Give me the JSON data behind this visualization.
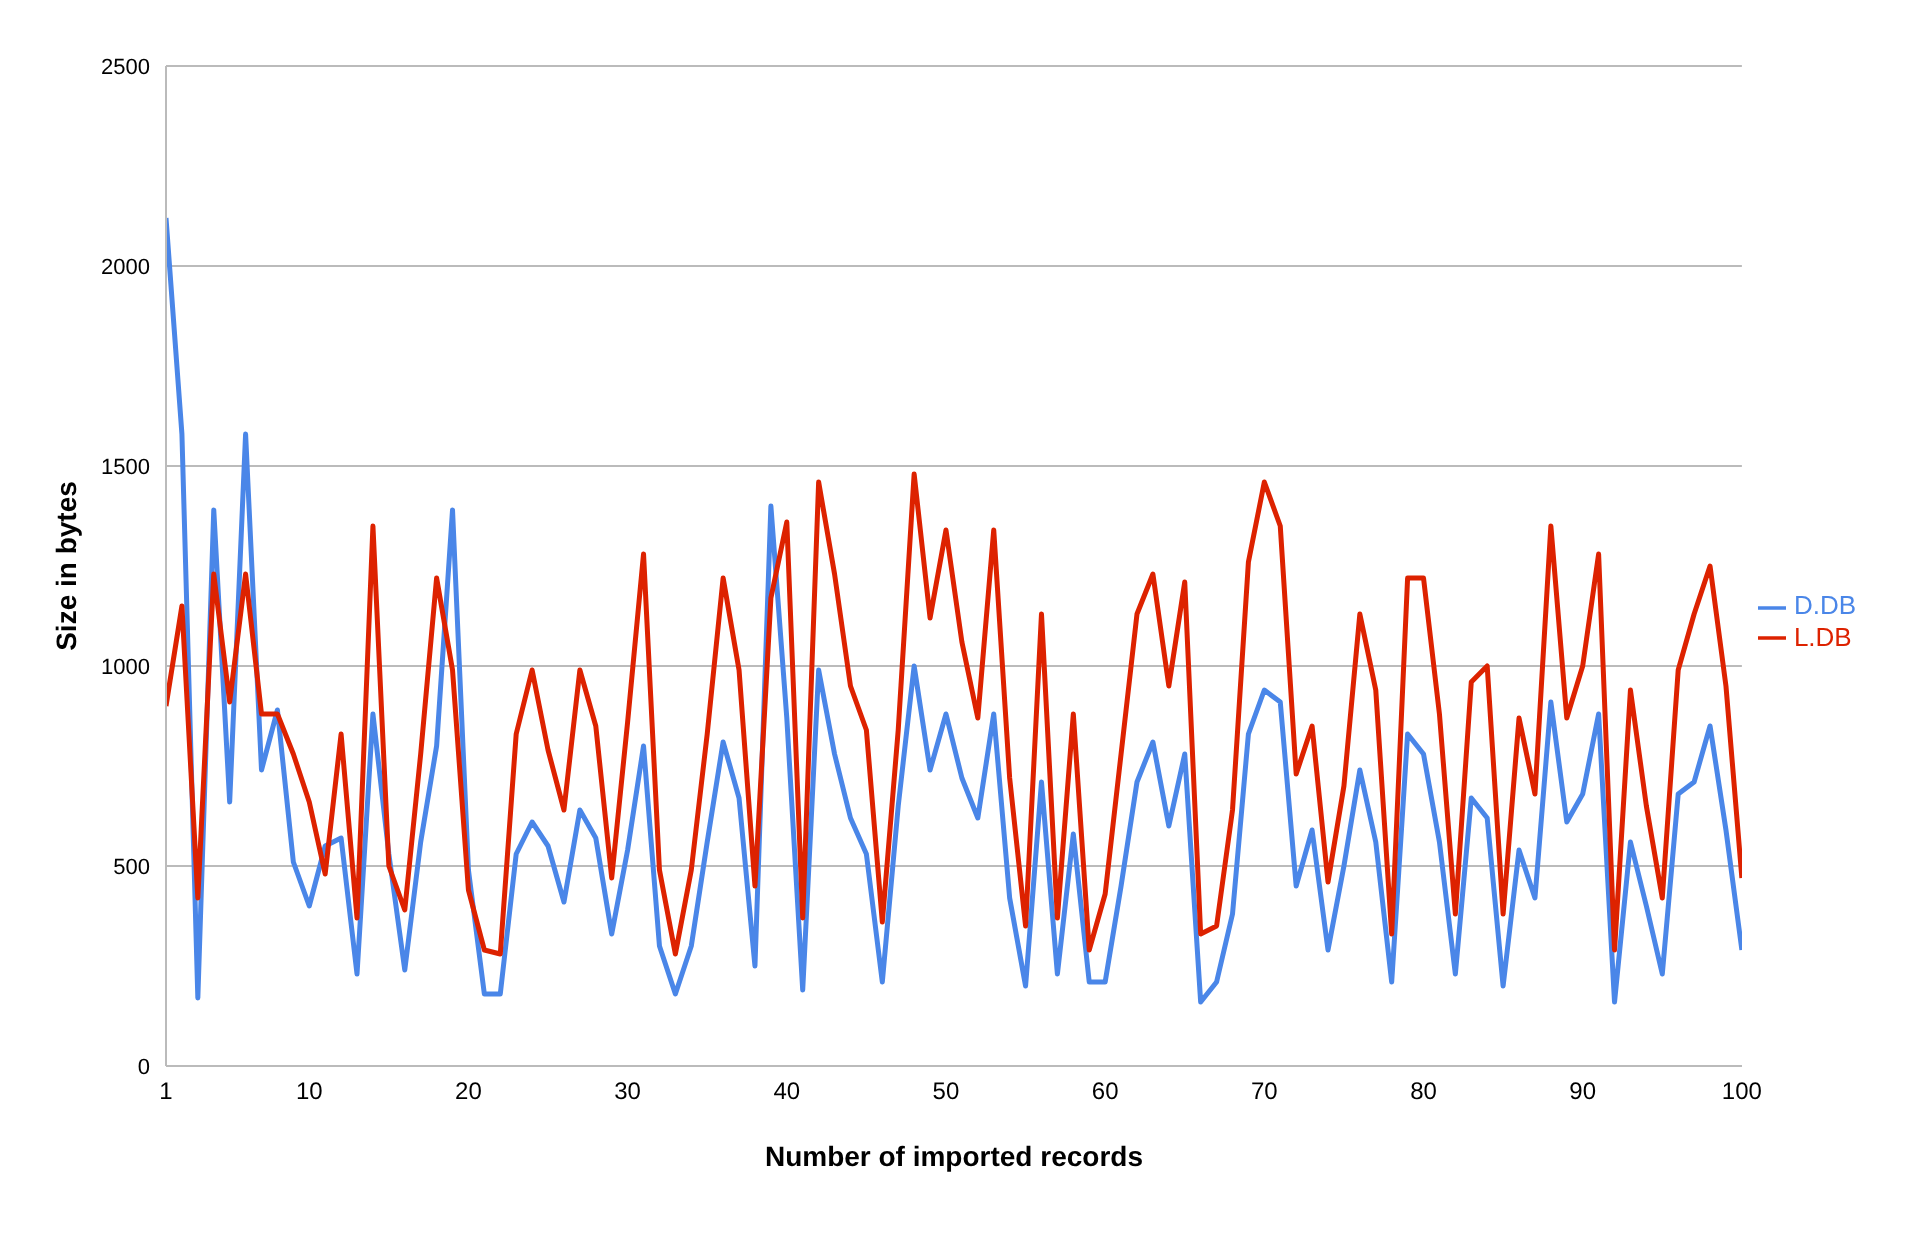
{
  "chart_data": {
    "type": "line",
    "xlabel": "Number of imported records",
    "ylabel": "Size in bytes",
    "x": [
      1,
      2,
      3,
      4,
      5,
      6,
      7,
      8,
      9,
      10,
      11,
      12,
      13,
      14,
      15,
      16,
      17,
      18,
      19,
      20,
      21,
      22,
      23,
      24,
      25,
      26,
      27,
      28,
      29,
      30,
      31,
      32,
      33,
      34,
      35,
      36,
      37,
      38,
      39,
      40,
      41,
      42,
      43,
      44,
      45,
      46,
      47,
      48,
      49,
      50,
      51,
      52,
      53,
      54,
      55,
      56,
      57,
      58,
      59,
      60,
      61,
      62,
      63,
      64,
      65,
      66,
      67,
      68,
      69,
      70,
      71,
      72,
      73,
      74,
      75,
      76,
      77,
      78,
      79,
      80,
      81,
      82,
      83,
      84,
      85,
      86,
      87,
      88,
      89,
      90,
      91,
      92,
      93,
      94,
      95,
      96,
      97,
      98,
      99,
      100
    ],
    "series": [
      {
        "name": "D.DB",
        "color": "#4a86e8",
        "values": [
          2120,
          1580,
          170,
          1390,
          660,
          1580,
          740,
          890,
          510,
          400,
          550,
          570,
          230,
          880,
          530,
          240,
          560,
          800,
          1390,
          490,
          180,
          180,
          530,
          610,
          550,
          410,
          640,
          570,
          330,
          540,
          800,
          300,
          180,
          300,
          560,
          810,
          670,
          250,
          1400,
          870,
          190,
          990,
          780,
          620,
          530,
          210,
          650,
          1000,
          740,
          880,
          720,
          620,
          880,
          420,
          200,
          710,
          230,
          580,
          210,
          210,
          450,
          710,
          810,
          600,
          780,
          160,
          210,
          380,
          830,
          940,
          910,
          450,
          590,
          290,
          500,
          740,
          560,
          210,
          830,
          780,
          560,
          230,
          670,
          620,
          200,
          540,
          420,
          910,
          610,
          680,
          880,
          160,
          560,
          400,
          230,
          680,
          710,
          850,
          590,
          290
        ]
      },
      {
        "name": "L.DB",
        "color": "#dd2200",
        "values": [
          900,
          1150,
          420,
          1230,
          910,
          1230,
          880,
          880,
          780,
          660,
          480,
          830,
          370,
          1350,
          500,
          390,
          780,
          1220,
          990,
          440,
          290,
          280,
          830,
          990,
          790,
          640,
          990,
          850,
          470,
          860,
          1280,
          490,
          280,
          490,
          830,
          1220,
          990,
          450,
          1170,
          1360,
          370,
          1460,
          1230,
          950,
          840,
          360,
          840,
          1480,
          1120,
          1340,
          1060,
          870,
          1340,
          720,
          350,
          1130,
          370,
          880,
          290,
          430,
          780,
          1130,
          1230,
          950,
          1210,
          330,
          350,
          640,
          1260,
          1460,
          1350,
          730,
          850,
          460,
          700,
          1130,
          940,
          330,
          1220,
          1220,
          880,
          380,
          960,
          1000,
          380,
          870,
          680,
          1350,
          870,
          1000,
          1280,
          290,
          940,
          650,
          420,
          990,
          1130,
          1250,
          950,
          470
        ]
      }
    ],
    "xlim": [
      1,
      100
    ],
    "xticks": [
      1,
      10,
      20,
      30,
      40,
      50,
      60,
      70,
      80,
      90,
      100
    ],
    "ylim": [
      0,
      2500
    ],
    "yticks": [
      0,
      500,
      1000,
      1500,
      2000,
      2500
    ],
    "grid": "y",
    "legend": "right",
    "marker": "none",
    "line_style": "solid"
  }
}
